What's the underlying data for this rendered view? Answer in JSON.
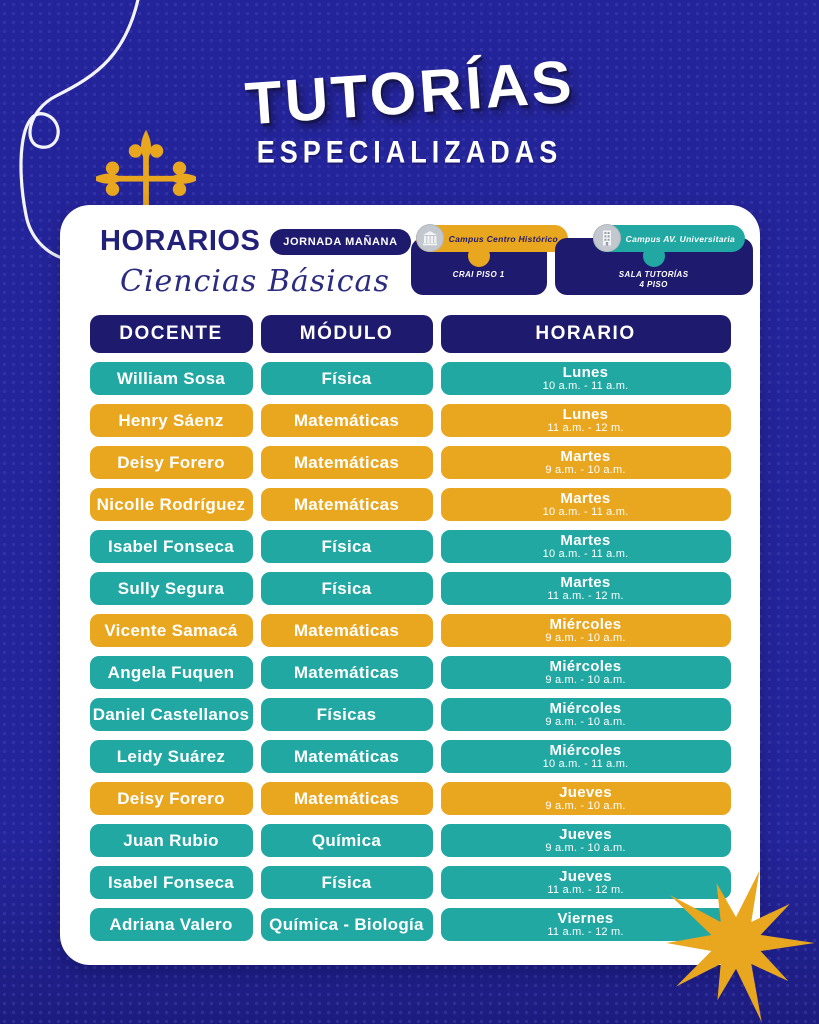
{
  "page": {
    "title_main": "TUTORÍAS",
    "title_sub": "ESPECIALIZADAS"
  },
  "colors": {
    "background": "#24249A",
    "navy": "#1E1A6E",
    "teal": "#21A8A2",
    "yellow": "#E9A61F",
    "card": "#FFFFFF",
    "gold": "#E9A61F"
  },
  "card_header": {
    "heading": "HORARIOS",
    "badge": "JORNADA MAÑANA",
    "subheading": "Ciencias Básicas"
  },
  "legends": [
    {
      "campus": "Campus Centro Histórico",
      "line1": "CRAI PISO 1",
      "line2": "",
      "theme": "yellow",
      "icon": "historic-building-icon"
    },
    {
      "campus": "Campus AV. Universitaria",
      "line1": "SALA TUTORÍAS",
      "line2": "4 PISO",
      "theme": "teal",
      "icon": "tower-building-icon"
    }
  ],
  "table": {
    "headers": [
      "DOCENTE",
      "MÓDULO",
      "HORARIO"
    ],
    "rows": [
      {
        "docente": "William Sosa",
        "modulo": "Física",
        "dia": "Lunes",
        "hora": "10 a.m. - 11 a.m.",
        "theme": "teal"
      },
      {
        "docente": "Henry Sáenz",
        "modulo": "Matemáticas",
        "dia": "Lunes",
        "hora": "11 a.m. - 12 m.",
        "theme": "yellow"
      },
      {
        "docente": "Deisy Forero",
        "modulo": "Matemáticas",
        "dia": "Martes",
        "hora": "9 a.m. - 10 a.m.",
        "theme": "yellow"
      },
      {
        "docente": "Nicolle Rodríguez",
        "modulo": "Matemáticas",
        "dia": "Martes",
        "hora": "10 a.m. - 11 a.m.",
        "theme": "yellow"
      },
      {
        "docente": "Isabel Fonseca",
        "modulo": "Física",
        "dia": "Martes",
        "hora": "10 a.m. - 11 a.m.",
        "theme": "teal"
      },
      {
        "docente": "Sully Segura",
        "modulo": "Física",
        "dia": "Martes",
        "hora": "11 a.m. - 12 m.",
        "theme": "teal"
      },
      {
        "docente": "Vicente Samacá",
        "modulo": "Matemáticas",
        "dia": "Miércoles",
        "hora": "9 a.m. - 10 a.m.",
        "theme": "yellow"
      },
      {
        "docente": "Angela Fuquen",
        "modulo": "Matemáticas",
        "dia": "Miércoles",
        "hora": "9 a.m. - 10 a.m.",
        "theme": "teal"
      },
      {
        "docente": "Daniel Castellanos",
        "modulo": "Físicas",
        "dia": "Miércoles",
        "hora": "9 a.m. - 10 a.m.",
        "theme": "teal"
      },
      {
        "docente": "Leidy Suárez",
        "modulo": "Matemáticas",
        "dia": "Miércoles",
        "hora": "10 a.m. - 11 a.m.",
        "theme": "teal"
      },
      {
        "docente": "Deisy Forero",
        "modulo": "Matemáticas",
        "dia": "Jueves",
        "hora": "9 a.m. - 10 a.m.",
        "theme": "yellow"
      },
      {
        "docente": "Juan Rubio",
        "modulo": "Química",
        "dia": "Jueves",
        "hora": "9 a.m. - 10 a.m.",
        "theme": "teal"
      },
      {
        "docente": "Isabel Fonseca",
        "modulo": "Física",
        "dia": "Jueves",
        "hora": "11 a.m. - 12 m.",
        "theme": "teal"
      },
      {
        "docente": "Adriana Valero",
        "modulo": "Química - Biología",
        "dia": "Viernes",
        "hora": "11 a.m. - 12 m.",
        "theme": "teal"
      }
    ]
  }
}
